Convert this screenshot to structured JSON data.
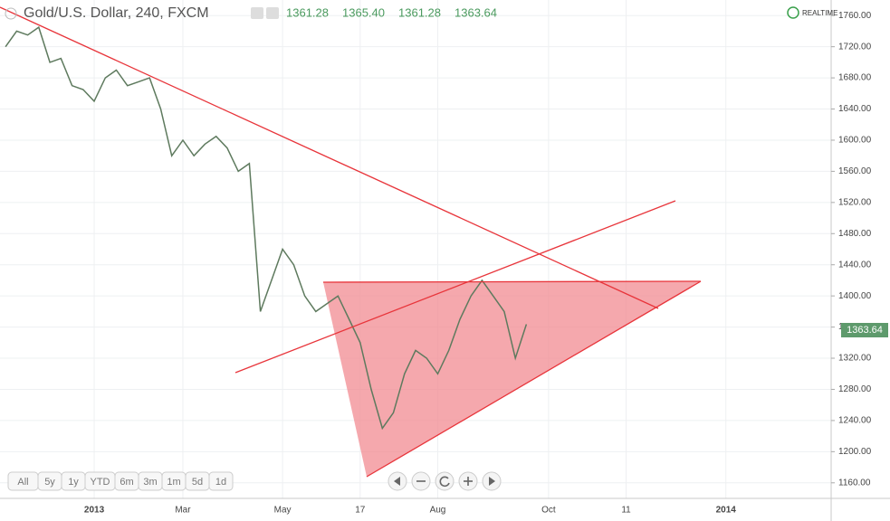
{
  "chart_data": {
    "type": "line",
    "title": "Gold/U.S. Dollar, 240, FXCM",
    "legend_values": [
      "1361.28",
      "1365.40",
      "1361.28",
      "1363.64"
    ],
    "realtime": "REALTIME",
    "last_price": "1363.64",
    "range_buttons": [
      "All",
      "5y",
      "1y",
      "YTD",
      "6m",
      "3m",
      "1m",
      "5d",
      "1d"
    ],
    "categories": [
      null,
      null,
      null,
      null,
      null,
      null,
      null,
      null,
      "2013",
      null,
      null,
      null,
      null,
      null,
      null,
      null,
      "Mar",
      null,
      null,
      null,
      null,
      null,
      null,
      null,
      null,
      "May",
      null,
      null,
      null,
      null,
      null,
      null,
      "17",
      null,
      null,
      null,
      null,
      null,
      null,
      "Aug",
      null,
      null,
      null,
      null,
      null,
      null,
      null,
      null,
      null,
      "Oct",
      null,
      null,
      null,
      null,
      null,
      null,
      "11",
      null,
      null,
      null,
      null,
      null,
      null,
      null,
      null,
      "2014",
      null,
      null,
      null,
      null,
      null,
      null,
      null,
      null,
      null
    ],
    "series": [
      {
        "color": "#5e7a5e",
        "values": [
          1720,
          1740,
          1735,
          1745,
          1700,
          1705,
          1670,
          1665,
          1650,
          1680,
          1690,
          1670,
          1675,
          1680,
          1640,
          1580,
          1600,
          1580,
          1595,
          1605,
          1590,
          1560,
          1570,
          1380,
          1420,
          1460,
          1440,
          1400,
          1380,
          1390,
          1400,
          1370,
          1340,
          1280,
          1230,
          1250,
          1300,
          1330,
          1320,
          1300,
          1330,
          1370,
          1400,
          1420,
          1400,
          1380,
          1320,
          1363.64,
          null,
          null,
          null,
          null,
          null,
          null,
          null,
          null,
          null,
          null,
          null,
          null,
          null,
          null,
          null,
          null,
          null,
          null,
          null,
          null,
          null,
          null,
          null,
          null,
          null,
          null,
          null
        ]
      }
    ],
    "ylim": [
      1140,
      1780
    ],
    "yticks": [
      {
        "value": 1160,
        "label": "1160.00"
      },
      {
        "value": 1200,
        "label": "1200.00"
      },
      {
        "value": 1240,
        "label": "1240.00"
      },
      {
        "value": 1280,
        "label": "1280.00"
      },
      {
        "value": 1320,
        "label": "1320.00"
      },
      {
        "value": 1360,
        "label": "1360.00"
      },
      {
        "value": 1400,
        "label": "1400.00"
      },
      {
        "value": 1440,
        "label": "1440.00"
      },
      {
        "value": 1480,
        "label": "1480.00"
      },
      {
        "value": 1520,
        "label": "1520.00"
      },
      {
        "value": 1560,
        "label": "1560.00"
      },
      {
        "value": 1600,
        "label": "1600.00"
      },
      {
        "value": 1640,
        "label": "1640.00"
      },
      {
        "value": 1680,
        "label": "1680.00"
      },
      {
        "value": 1720,
        "label": "1720.00"
      },
      {
        "value": 1760,
        "label": "1760.00"
      }
    ],
    "grid": true
  }
}
